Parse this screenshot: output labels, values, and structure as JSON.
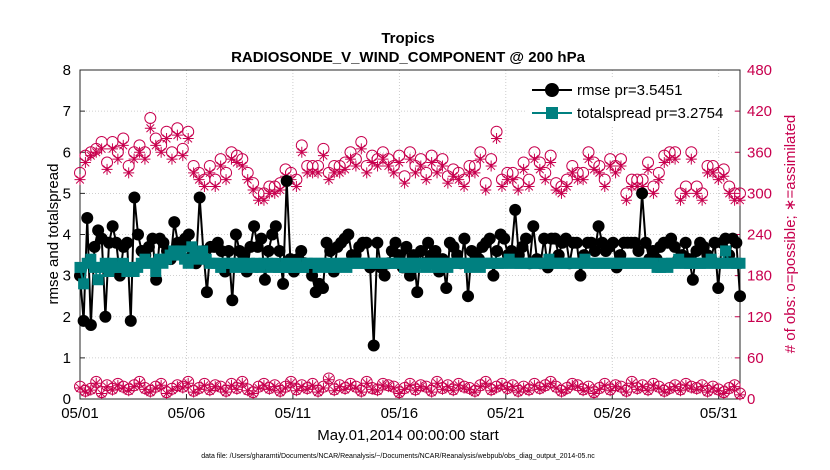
{
  "chart_data": {
    "type": "line",
    "title": "Tropics",
    "subtitle": "RADIOSONDE_V_WIND_COMPONENT @ 200 hPa",
    "xlabel": "May.01,2014 00:00:00 start",
    "ylabel": "rmse and totalspread",
    "ylabel_right": "# of obs: o=possible; ∗=assimilated",
    "footnote": "data file: /Users/gharamti/Documents/NCAR/Reanalysis/~/Documents/NCAR/Reanalysis/webpub/obs_diag_output_2014-05.nc",
    "x_range": [
      0,
      31
    ],
    "ylim": [
      0,
      8
    ],
    "ylim_right": [
      0,
      480
    ],
    "yticks": [
      "0",
      "1",
      "2",
      "3",
      "4",
      "5",
      "6",
      "7",
      "8"
    ],
    "yticks_right": [
      "0",
      "60",
      "120",
      "180",
      "240",
      "300",
      "360",
      "420",
      "480"
    ],
    "xticks": [
      {
        "day": 0,
        "label": "05/01"
      },
      {
        "day": 5,
        "label": "05/06"
      },
      {
        "day": 10,
        "label": "05/11"
      },
      {
        "day": 15,
        "label": "05/16"
      },
      {
        "day": 20,
        "label": "05/21"
      },
      {
        "day": 25,
        "label": "05/26"
      },
      {
        "day": 30,
        "label": "05/31"
      }
    ],
    "grid": true,
    "legend_position": "top-right",
    "colors": {
      "rmse": "#000000",
      "totalspread": "#008080",
      "obs": "#c8004e"
    },
    "series": [
      {
        "name": "rmse",
        "legend": "rmse pr=3.5451",
        "values": [
          3.0,
          1.9,
          4.4,
          1.8,
          3.7,
          4.1,
          3.9,
          2.0,
          3.8,
          4.2,
          3.8,
          3.0,
          3.7,
          3.8,
          1.9,
          4.9,
          4.0,
          3.6,
          3.5,
          3.7,
          3.9,
          2.9,
          3.9,
          3.8,
          3.6,
          3.4,
          4.3,
          3.8,
          3.7,
          3.9,
          4.0,
          3.5,
          3.3,
          4.9,
          3.6,
          2.6,
          3.7,
          3.7,
          3.8,
          3.6,
          3.1,
          3.6,
          2.4,
          4.0,
          3.6,
          3.5,
          3.1,
          3.7,
          4.2,
          3.7,
          3.9,
          2.9,
          3.6,
          4.0,
          4.2,
          3.6,
          2.8,
          5.3,
          3.4,
          3.1,
          3.4,
          3.6,
          3.3,
          3.2,
          3.0,
          2.6,
          2.8,
          2.7,
          3.8,
          3.6,
          3.1,
          3.7,
          3.8,
          3.9,
          4.0,
          3.5,
          3.5,
          3.7,
          3.8,
          3.8,
          3.2,
          1.3,
          3.8,
          3.2,
          3.0,
          3.3,
          3.6,
          3.8,
          3.5,
          3.2,
          3.7,
          3.0,
          3.5,
          2.6,
          3.6,
          3.3,
          3.8,
          3.5,
          3.6,
          3.1,
          3.4,
          2.7,
          3.8,
          3.7,
          3.5,
          3.3,
          3.9,
          2.5,
          3.6,
          3.5,
          3.4,
          3.7,
          3.8,
          3.9,
          3.0,
          3.6,
          4.0,
          3.9,
          3.5,
          3.6,
          4.6,
          3.5,
          3.7,
          3.9,
          3.3,
          4.2,
          3.4,
          3.3,
          3.9,
          3.2,
          3.9,
          3.9,
          3.5,
          3.8,
          3.9,
          3.3,
          3.8,
          3.8,
          3.0,
          3.5,
          3.8,
          3.8,
          3.6,
          4.2,
          3.8,
          3.6,
          3.7,
          3.8,
          3.2,
          3.5,
          3.8,
          3.8,
          3.8,
          3.8,
          3.6,
          5.0,
          3.8,
          3.4,
          3.6,
          3.4,
          3.7,
          3.8,
          3.8,
          3.9,
          3.7,
          3.4,
          3.5,
          3.8,
          3.4,
          2.9,
          3.6,
          3.8,
          3.7,
          3.5,
          3.4,
          3.8,
          2.7,
          3.8,
          3.9,
          3.5,
          3.9,
          3.8,
          2.5
        ]
      },
      {
        "name": "totalspread",
        "legend": "totalspread pr=3.2754",
        "values": [
          3.2,
          2.8,
          3.3,
          3.4,
          3.2,
          2.9,
          3.2,
          3.3,
          3.1,
          3.3,
          3.2,
          3.2,
          3.3,
          3.1,
          3.2,
          3.1,
          3.2,
          3.3,
          3.4,
          3.3,
          3.3,
          3.1,
          3.4,
          3.3,
          3.4,
          3.5,
          3.6,
          3.5,
          3.6,
          3.4,
          3.3,
          3.7,
          3.5,
          3.4,
          3.6,
          3.4,
          3.3,
          3.3,
          3.3,
          3.2,
          3.3,
          3.3,
          3.3,
          3.2,
          3.3,
          3.3,
          3.2,
          3.3,
          3.2,
          3.3,
          3.2,
          3.3,
          3.3,
          3.2,
          3.3,
          3.2,
          3.2,
          3.3,
          3.2,
          3.2,
          3.3,
          3.2,
          3.2,
          3.3,
          3.3,
          3.3,
          3.2,
          3.3,
          3.3,
          3.2,
          3.3,
          3.2,
          3.3,
          3.3,
          3.2,
          3.3,
          3.3,
          3.3,
          3.3,
          3.3,
          3.3,
          3.3,
          3.3,
          3.3,
          3.3,
          3.3,
          3.3,
          3.3,
          3.3,
          3.3,
          3.2,
          3.3,
          3.3,
          3.2,
          3.3,
          3.3,
          3.2,
          3.3,
          3.3,
          3.2,
          3.3,
          3.3,
          3.2,
          3.3,
          3.3,
          3.3,
          3.3,
          3.3,
          3.2,
          3.3,
          3.3,
          3.2,
          3.3,
          3.3,
          3.3,
          3.3,
          3.3,
          3.3,
          3.3,
          3.4,
          3.3,
          3.3,
          3.3,
          3.3,
          3.3,
          3.3,
          3.3,
          3.3,
          3.3,
          3.3,
          3.4,
          3.3,
          3.3,
          3.3,
          3.3,
          3.3,
          3.3,
          3.3,
          3.3,
          3.3,
          3.4,
          3.3,
          3.3,
          3.3,
          3.3,
          3.3,
          3.3,
          3.3,
          3.3,
          3.3,
          3.3,
          3.3,
          3.3,
          3.3,
          3.3,
          3.3,
          3.3,
          3.3,
          3.3,
          3.3,
          3.2,
          3.2,
          3.3,
          3.2,
          3.3,
          3.3,
          3.4,
          3.3,
          3.3,
          3.3,
          3.3,
          3.3,
          3.3,
          3.3,
          3.3,
          3.4,
          3.3,
          3.3,
          3.3,
          3.6,
          3.3,
          3.3,
          3.3,
          3.3
        ]
      },
      {
        "name": "obs possible (upper)",
        "axis": "right",
        "marker": "circle",
        "values": [
          330,
          355,
          360,
          365,
          375,
          345,
          375,
          360,
          380,
          340,
          360,
          370,
          360,
          410,
          380,
          370,
          390,
          360,
          395,
          365,
          390,
          340,
          330,
          320,
          340,
          320,
          350,
          330,
          360,
          355,
          350,
          330,
          315,
          300,
          300,
          310,
          310,
          315,
          335,
          330,
          320,
          370,
          340,
          340,
          340,
          365,
          330,
          340,
          340,
          345,
          360,
          350,
          375,
          340,
          355,
          350,
          360,
          350,
          340,
          355,
          325,
          360,
          340,
          350,
          330,
          355,
          340,
          350,
          325,
          335,
          330,
          320,
          340,
          340,
          360,
          315,
          350,
          390,
          320,
          330,
          330,
          315,
          345,
          320,
          360,
          345,
          330,
          355,
          315,
          310,
          320,
          340,
          330,
          330,
          360,
          345,
          340,
          320,
          350,
          340,
          350,
          300,
          320,
          320,
          320,
          345,
          310,
          330,
          355,
          360,
          360,
          300,
          310,
          360,
          310,
          300,
          340,
          340,
          330,
          335,
          310,
          300,
          300
        ]
      },
      {
        "name": "obs assimilated (upper)",
        "axis": "right",
        "marker": "asterisk",
        "values": [
          320,
          345,
          355,
          360,
          365,
          335,
          365,
          350,
          370,
          330,
          350,
          360,
          350,
          395,
          370,
          360,
          380,
          350,
          385,
          355,
          380,
          330,
          320,
          310,
          330,
          310,
          340,
          320,
          350,
          345,
          340,
          320,
          305,
          290,
          290,
          300,
          300,
          305,
          325,
          320,
          310,
          360,
          330,
          330,
          330,
          355,
          320,
          330,
          330,
          335,
          350,
          340,
          365,
          330,
          345,
          340,
          350,
          340,
          330,
          345,
          315,
          350,
          330,
          340,
          320,
          345,
          330,
          340,
          315,
          325,
          320,
          310,
          330,
          330,
          350,
          305,
          340,
          380,
          310,
          320,
          320,
          305,
          335,
          310,
          350,
          335,
          320,
          345,
          305,
          300,
          310,
          330,
          320,
          320,
          350,
          335,
          330,
          310,
          340,
          330,
          340,
          290,
          310,
          310,
          310,
          335,
          300,
          320,
          345,
          350,
          350,
          290,
          300,
          350,
          300,
          290,
          330,
          330,
          320,
          325,
          300,
          290,
          290
        ]
      },
      {
        "name": "obs possible (lower)",
        "axis": "right",
        "marker": "circle",
        "values": [
          18,
          12,
          15,
          25,
          10,
          20,
          15,
          22,
          18,
          14,
          20,
          25,
          16,
          12,
          18,
          22,
          10,
          15,
          20,
          18,
          25,
          12,
          16,
          22,
          14,
          20,
          18,
          12,
          22,
          16,
          25,
          14,
          10,
          18,
          22,
          16,
          20,
          12,
          18,
          25,
          14,
          20,
          16,
          22,
          12,
          18,
          30,
          14,
          20,
          16,
          22,
          18,
          12,
          25,
          16,
          14,
          22,
          20,
          18,
          10,
          16,
          22,
          14,
          20,
          18,
          12,
          25,
          16,
          20,
          14,
          22,
          18,
          16,
          12,
          20,
          25,
          14,
          18,
          22,
          16,
          20,
          12,
          18,
          14,
          22,
          16,
          20,
          25,
          18,
          12,
          16,
          22,
          20,
          14,
          18,
          10,
          16,
          22,
          14,
          20,
          18,
          12,
          25,
          16,
          20,
          14,
          22,
          18,
          12,
          16,
          20,
          14,
          22,
          18,
          16,
          20,
          12,
          18,
          14,
          10,
          16,
          20,
          8
        ]
      },
      {
        "name": "obs assimilated (lower)",
        "axis": "right",
        "marker": "asterisk",
        "values": [
          16,
          10,
          13,
          23,
          8,
          18,
          13,
          20,
          16,
          12,
          18,
          23,
          14,
          10,
          16,
          20,
          8,
          13,
          18,
          16,
          23,
          10,
          14,
          20,
          12,
          18,
          16,
          10,
          20,
          14,
          23,
          12,
          8,
          16,
          20,
          14,
          18,
          10,
          16,
          23,
          12,
          18,
          14,
          20,
          10,
          16,
          28,
          12,
          18,
          14,
          20,
          16,
          10,
          23,
          14,
          12,
          20,
          18,
          16,
          8,
          14,
          20,
          12,
          18,
          16,
          10,
          23,
          14,
          18,
          12,
          20,
          16,
          14,
          10,
          18,
          23,
          12,
          16,
          20,
          14,
          18,
          10,
          16,
          12,
          20,
          14,
          18,
          23,
          16,
          10,
          14,
          20,
          18,
          12,
          16,
          8,
          14,
          20,
          12,
          18,
          16,
          10,
          23,
          14,
          18,
          12,
          20,
          16,
          10,
          14,
          18,
          12,
          20,
          16,
          14,
          18,
          10,
          16,
          12,
          8,
          14,
          18,
          6
        ]
      }
    ]
  }
}
